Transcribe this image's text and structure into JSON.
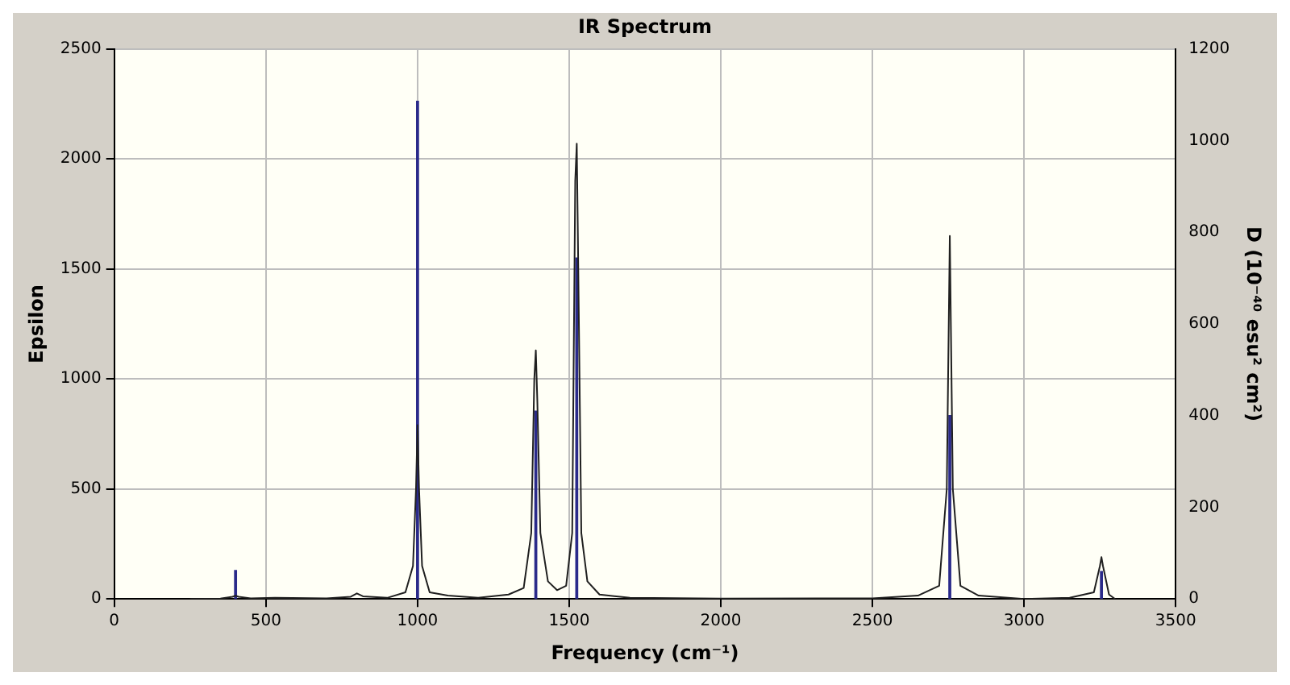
{
  "chart_data": {
    "type": "line",
    "title": "IR Spectrum",
    "xlabel": "Frequency (cm⁻¹)",
    "ylabel": "Epsilon",
    "y2label": "D (10⁻⁴⁰ esu² cm²)",
    "xlim": [
      0,
      3500
    ],
    "xticks": [
      0,
      500,
      1000,
      1500,
      2000,
      2500,
      3000,
      3500
    ],
    "ylim": [
      0,
      2500
    ],
    "yticks": [
      0,
      500,
      1000,
      1500,
      2000,
      2500
    ],
    "y2lim": [
      0,
      1200
    ],
    "y2ticks": [
      0,
      200,
      400,
      600,
      800,
      1000,
      1200
    ],
    "grid": true,
    "marker": "none",
    "line_style": "solid",
    "legend": false,
    "series": [
      {
        "color": "#202020",
        "x": [
          250,
          350,
          390,
          400,
          410,
          450,
          530,
          700,
          780,
          800,
          820,
          900,
          960,
          985,
          995,
          1000,
          1005,
          1015,
          1040,
          1100,
          1200,
          1300,
          1350,
          1375,
          1385,
          1390,
          1395,
          1405,
          1430,
          1460,
          1490,
          1510,
          1520,
          1525,
          1530,
          1540,
          1560,
          1600,
          1700,
          2000,
          2500,
          2650,
          2720,
          2745,
          2755,
          2765,
          2790,
          2850,
          3000,
          3150,
          3230,
          3250,
          3255,
          3260,
          3280,
          3300
        ],
        "values": [
          0,
          2,
          10,
          15,
          10,
          3,
          5,
          3,
          10,
          25,
          12,
          5,
          30,
          150,
          500,
          790,
          500,
          150,
          30,
          15,
          5,
          20,
          50,
          300,
          1000,
          1130,
          900,
          300,
          80,
          40,
          60,
          300,
          1900,
          2070,
          1500,
          300,
          80,
          20,
          5,
          2,
          3,
          15,
          60,
          500,
          1650,
          500,
          60,
          15,
          0,
          5,
          30,
          150,
          190,
          150,
          20,
          0
        ]
      },
      {
        "type": "bar",
        "axis": "y2",
        "color": "#2a2a8a",
        "x": [
          400,
          1000,
          1390,
          1525,
          2755,
          3255
        ],
        "values": [
          62,
          1086,
          410,
          744,
          400,
          60
        ]
      }
    ]
  }
}
